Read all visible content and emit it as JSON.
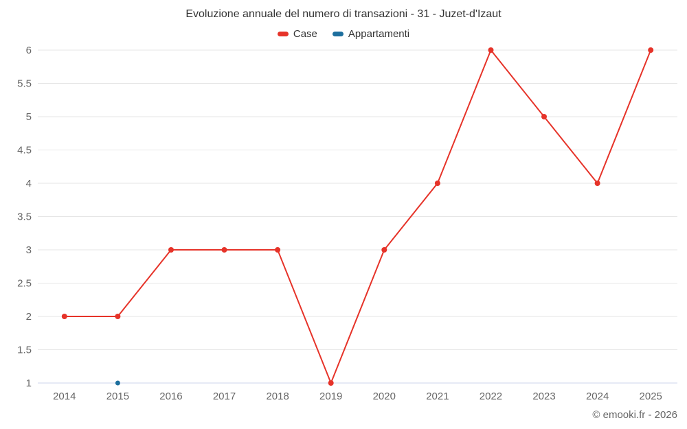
{
  "header": {
    "title": "Evoluzione annuale del numero di transazioni - 31 - Juzet-d'Izaut"
  },
  "legend": {
    "items": [
      {
        "label": "Case",
        "color": "#e63329"
      },
      {
        "label": "Appartamenti",
        "color": "#1d6f9e"
      }
    ]
  },
  "footer": {
    "credit": "© emooki.fr - 2026"
  },
  "chart_data": {
    "type": "line",
    "title": "Evoluzione annuale del numero di transazioni - 31 - Juzet-d'Izaut",
    "categories": [
      "2014",
      "2015",
      "2016",
      "2017",
      "2018",
      "2019",
      "2020",
      "2021",
      "2022",
      "2023",
      "2024",
      "2025"
    ],
    "series": [
      {
        "name": "Case",
        "color": "#e63329",
        "marker_radius": 4,
        "values": [
          2,
          2,
          3,
          3,
          3,
          1,
          3,
          4,
          6,
          5,
          4,
          6
        ]
      },
      {
        "name": "Appartamenti",
        "color": "#1d6f9e",
        "marker_radius": 3.5,
        "values": [
          null,
          1,
          null,
          null,
          null,
          null,
          null,
          null,
          null,
          null,
          null,
          null
        ]
      }
    ],
    "xlabel": "",
    "ylabel": "",
    "ylim": [
      1,
      6
    ],
    "yticks": [
      1,
      1.5,
      2,
      2.5,
      3,
      3.5,
      4,
      4.5,
      5,
      5.5,
      6
    ],
    "grid": "horizontal",
    "grid_color": "#e6e6e6",
    "axis_line_color": "#ccd6eb",
    "legend_position": "top"
  }
}
